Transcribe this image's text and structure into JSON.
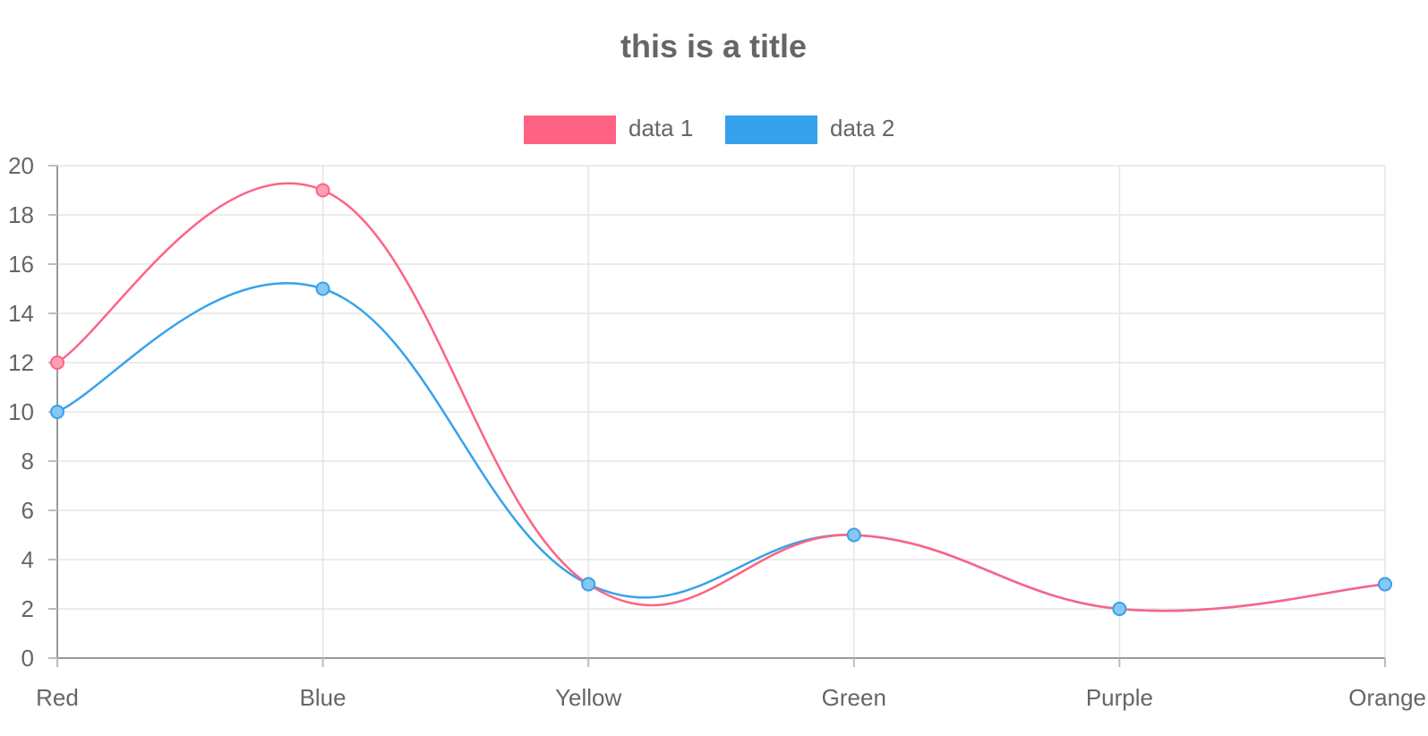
{
  "chart_data": {
    "type": "line",
    "title": "this is a title",
    "categories": [
      "Red",
      "Blue",
      "Yellow",
      "Green",
      "Purple",
      "Orange"
    ],
    "ylim": [
      0,
      20
    ],
    "y_ticks": [
      "0",
      "2",
      "4",
      "6",
      "8",
      "10",
      "12",
      "14",
      "16",
      "18",
      "20"
    ],
    "grid": true,
    "legend_position": "top",
    "curve": "smooth",
    "series": [
      {
        "name": "data 1",
        "values": [
          12,
          19,
          3,
          5,
          2,
          3
        ],
        "color": "#ff6384",
        "fill_color": "#ff9fb4"
      },
      {
        "name": "data 2",
        "values": [
          10,
          15,
          3,
          5,
          2,
          3
        ],
        "color": "#36a2eb",
        "fill_color": "#86c7f3"
      }
    ]
  }
}
